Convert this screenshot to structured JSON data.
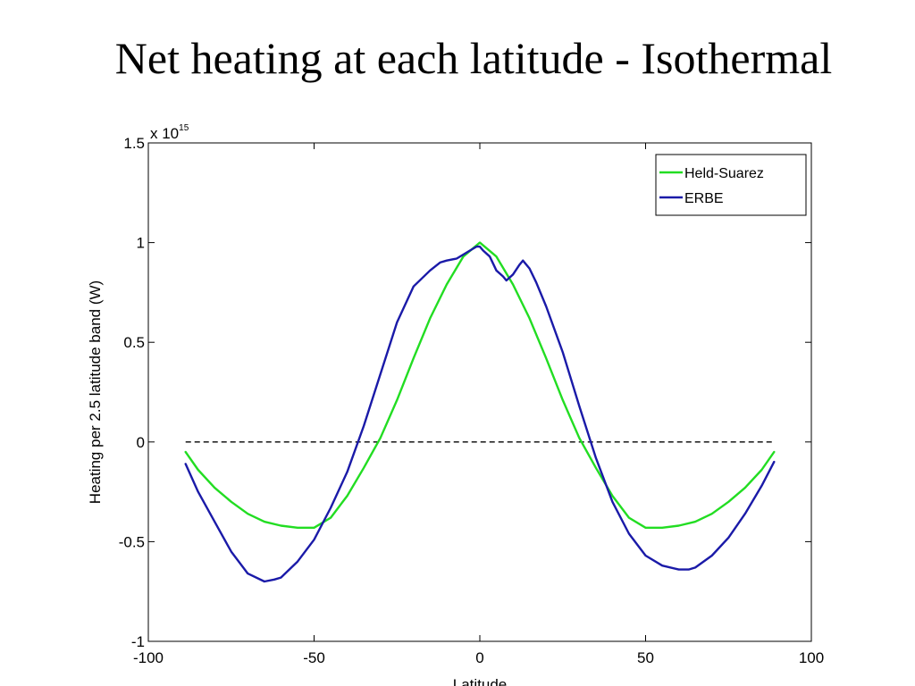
{
  "slide": {
    "title": "Net heating at each latitude - Isothermal"
  },
  "chart_data": {
    "type": "line",
    "xlabel": "Latitude",
    "ylabel": "Heating per 2.5 latitude band (W)",
    "xlim": [
      -100,
      100
    ],
    "ylim": [
      -1,
      1.5
    ],
    "xticks": [
      -100,
      -50,
      0,
      50,
      100
    ],
    "yticks": [
      -1,
      -0.5,
      0,
      0.5,
      1,
      1.5
    ],
    "xtick_labels": [
      "-100",
      "-50",
      "0",
      "50",
      "100"
    ],
    "ytick_labels": [
      "-1",
      "-0.5",
      "0",
      "0.5",
      "1",
      "1.5"
    ],
    "exponent_label": "x 10",
    "exponent_power": "15",
    "grid": false,
    "legend_position": "top-right",
    "colors": {
      "held_suarez": "#22dd22",
      "erbe": "#1a1aa8",
      "zero_line": "#000000"
    },
    "reference_line": {
      "y": 0,
      "x": [
        -88.75,
        88.75
      ],
      "style": "dashed"
    },
    "series": [
      {
        "name": "Held-Suarez",
        "color": "#22dd22",
        "x": [
          -88.75,
          -85,
          -80,
          -75,
          -70,
          -65,
          -60,
          -55,
          -50,
          -45,
          -40,
          -35,
          -30,
          -25,
          -20,
          -15,
          -10,
          -5,
          0,
          5,
          10,
          15,
          20,
          25,
          30,
          35,
          40,
          45,
          50,
          55,
          60,
          65,
          70,
          75,
          80,
          85,
          88.75
        ],
        "y": [
          -0.05,
          -0.14,
          -0.23,
          -0.3,
          -0.36,
          -0.4,
          -0.42,
          -0.43,
          -0.43,
          -0.38,
          -0.27,
          -0.13,
          0.02,
          0.21,
          0.42,
          0.62,
          0.79,
          0.93,
          1.0,
          0.93,
          0.79,
          0.62,
          0.42,
          0.21,
          0.02,
          -0.13,
          -0.27,
          -0.38,
          -0.43,
          -0.43,
          -0.42,
          -0.4,
          -0.36,
          -0.3,
          -0.23,
          -0.14,
          -0.05
        ]
      },
      {
        "name": "ERBE",
        "color": "#1a1aa8",
        "x": [
          -88.75,
          -85,
          -80,
          -75,
          -70,
          -65,
          -62,
          -60,
          -55,
          -50,
          -45,
          -40,
          -35,
          -30,
          -25,
          -20,
          -15,
          -12,
          -10,
          -7,
          -5,
          -3,
          -1,
          0,
          1,
          3,
          5,
          7,
          8,
          10,
          12,
          13,
          15,
          17,
          20,
          25,
          30,
          35,
          40,
          45,
          50,
          55,
          60,
          63,
          65,
          70,
          75,
          80,
          85,
          88.75
        ],
        "y": [
          -0.11,
          -0.25,
          -0.4,
          -0.55,
          -0.66,
          -0.7,
          -0.69,
          -0.68,
          -0.6,
          -0.49,
          -0.33,
          -0.15,
          0.08,
          0.34,
          0.6,
          0.78,
          0.86,
          0.9,
          0.91,
          0.92,
          0.94,
          0.96,
          0.98,
          0.98,
          0.96,
          0.93,
          0.86,
          0.83,
          0.81,
          0.84,
          0.89,
          0.91,
          0.87,
          0.8,
          0.68,
          0.45,
          0.18,
          -0.08,
          -0.3,
          -0.46,
          -0.57,
          -0.62,
          -0.64,
          -0.64,
          -0.63,
          -0.57,
          -0.48,
          -0.36,
          -0.22,
          -0.1
        ]
      }
    ]
  }
}
